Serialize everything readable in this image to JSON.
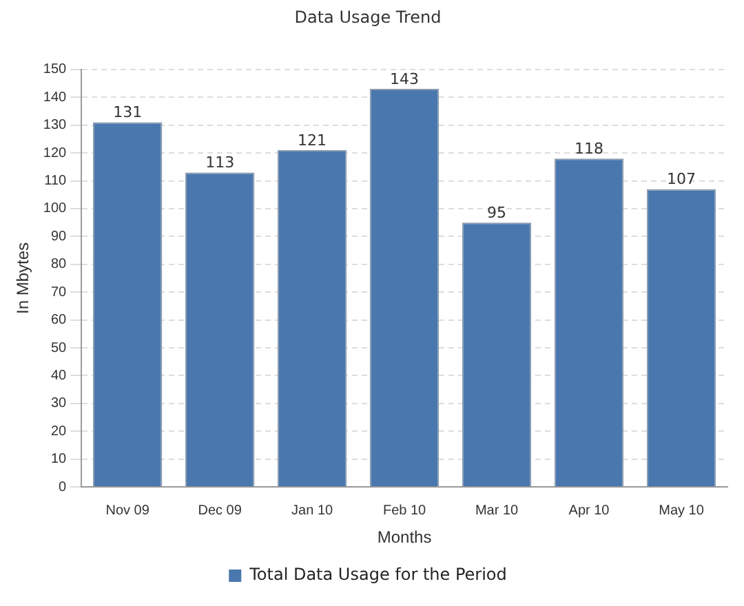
{
  "chart_data": {
    "type": "bar",
    "title": "Data Usage Trend",
    "xlabel": "Months",
    "ylabel": "In Mbytes",
    "categories": [
      "Nov 09",
      "Dec 09",
      "Jan 10",
      "Feb 10",
      "Mar 10",
      "Apr 10",
      "May 10"
    ],
    "series": [
      {
        "name": "Total Data Usage for the Period",
        "color": "#4a77ad",
        "values": [
          131,
          113,
          121,
          143,
          95,
          118,
          107
        ]
      }
    ],
    "ylim": [
      0,
      150
    ],
    "yticks": [
      0,
      10,
      20,
      30,
      40,
      50,
      60,
      70,
      80,
      90,
      100,
      110,
      120,
      130,
      140,
      150
    ],
    "grid": "y",
    "legend": "bottom",
    "data_labels": true
  }
}
